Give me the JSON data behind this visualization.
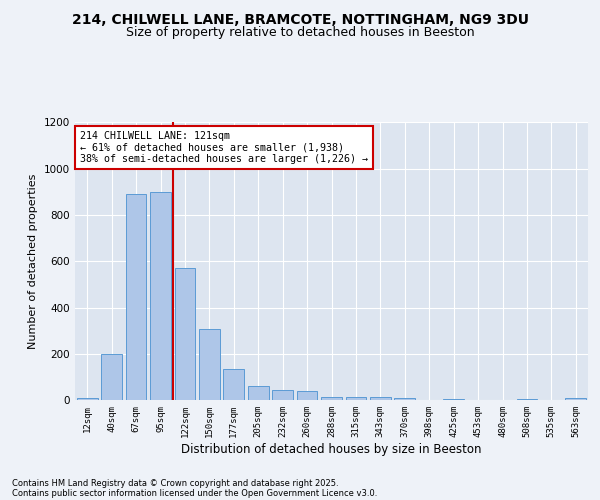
{
  "title1": "214, CHILWELL LANE, BRAMCOTE, NOTTINGHAM, NG9 3DU",
  "title2": "Size of property relative to detached houses in Beeston",
  "xlabel": "Distribution of detached houses by size in Beeston",
  "ylabel": "Number of detached properties",
  "categories": [
    "12sqm",
    "40sqm",
    "67sqm",
    "95sqm",
    "122sqm",
    "150sqm",
    "177sqm",
    "205sqm",
    "232sqm",
    "260sqm",
    "288sqm",
    "315sqm",
    "343sqm",
    "370sqm",
    "398sqm",
    "425sqm",
    "453sqm",
    "480sqm",
    "508sqm",
    "535sqm",
    "563sqm"
  ],
  "values": [
    10,
    200,
    890,
    900,
    570,
    305,
    135,
    60,
    45,
    40,
    15,
    15,
    15,
    10,
    0,
    5,
    0,
    0,
    5,
    0,
    10
  ],
  "bar_color": "#aec6e8",
  "bar_edge_color": "#5b9bd5",
  "vline_x_index": 3.5,
  "annotation_text_line1": "214 CHILWELL LANE: 121sqm",
  "annotation_text_line2": "← 61% of detached houses are smaller (1,938)",
  "annotation_text_line3": "38% of semi-detached houses are larger (1,226) →",
  "annotation_box_color": "#ffffff",
  "annotation_box_edge_color": "#cc0000",
  "vline_color": "#cc0000",
  "footnote1": "Contains HM Land Registry data © Crown copyright and database right 2025.",
  "footnote2": "Contains public sector information licensed under the Open Government Licence v3.0.",
  "ylim": [
    0,
    1200
  ],
  "yticks": [
    0,
    200,
    400,
    600,
    800,
    1000,
    1200
  ],
  "bg_color": "#eef2f8",
  "plot_bg_color": "#dde5f0",
  "grid_color": "#ffffff",
  "title_fontsize": 10,
  "subtitle_fontsize": 9
}
